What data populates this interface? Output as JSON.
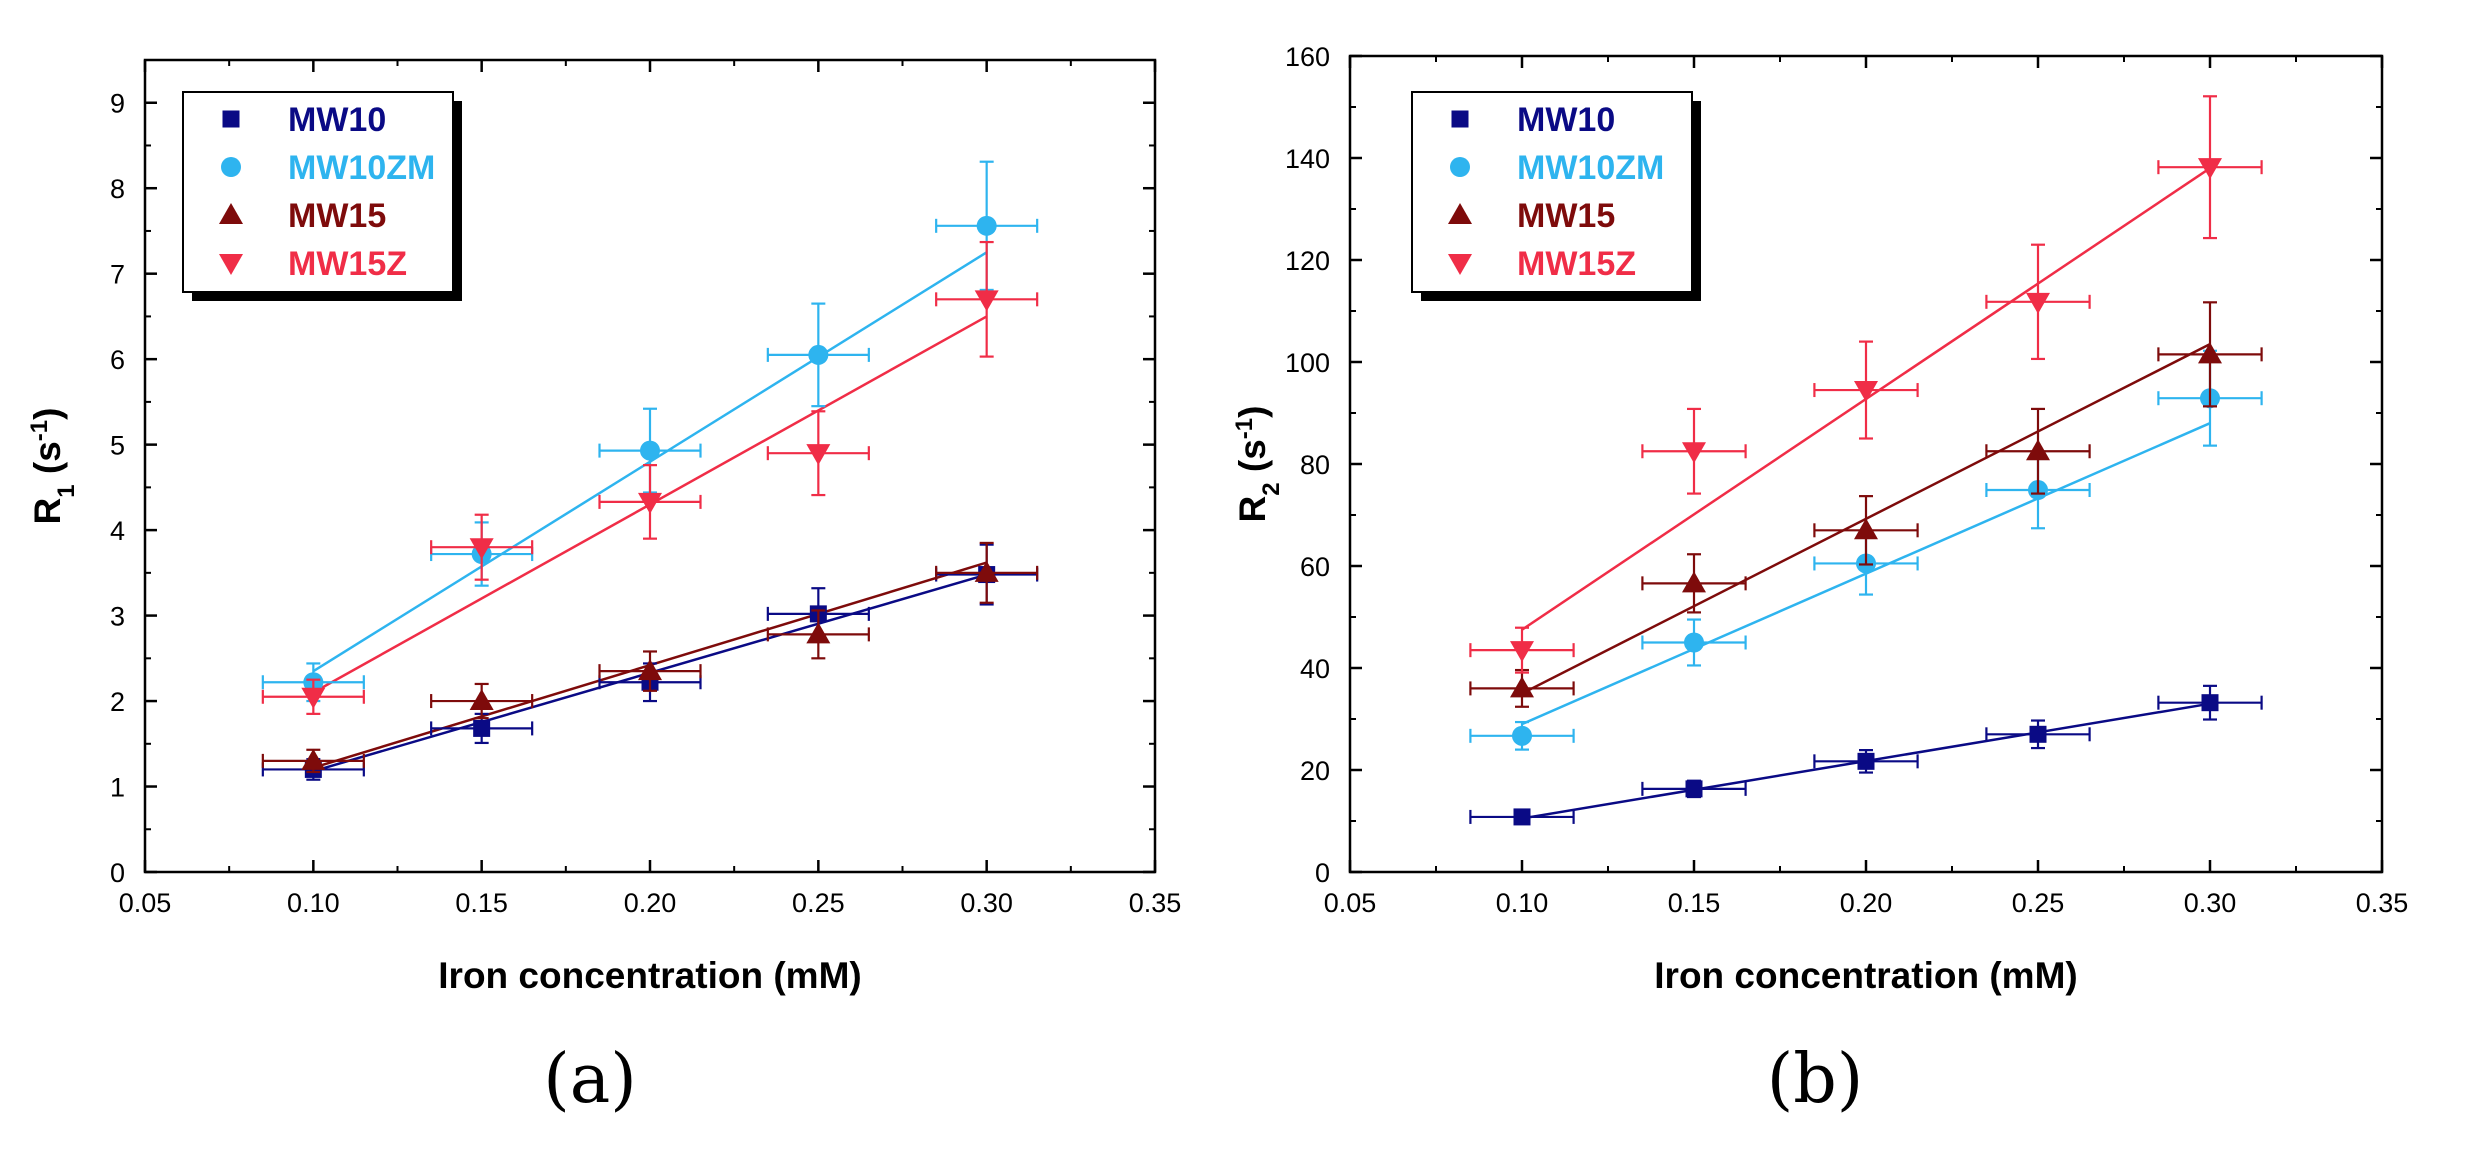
{
  "colors": {
    "MW10": "#0a0a85",
    "MW10ZM": "#2eb4ef",
    "MW15": "#7e0b0b",
    "MW15Z": "#f02d47"
  },
  "chart_data": [
    {
      "type": "scatter",
      "panel_label": "(a)",
      "xlabel": "Iron concentration (mM)",
      "ylabel": {
        "base": "R",
        "sub": "1",
        "unit_open": " (s",
        "sup": "-1",
        "unit_close": ")"
      },
      "xlim": [
        0.05,
        0.35
      ],
      "ylim": [
        0,
        9.5
      ],
      "xticks": [
        0.05,
        0.1,
        0.15,
        0.2,
        0.25,
        0.3,
        0.35
      ],
      "xtick_labels": [
        "0.05",
        "0.10",
        "0.15",
        "0.20",
        "0.25",
        "0.30",
        "0.35"
      ],
      "yticks": [
        0,
        1,
        2,
        3,
        4,
        5,
        6,
        7,
        8,
        9
      ],
      "ytick_labels": [
        "0",
        "1",
        "2",
        "3",
        "4",
        "5",
        "6",
        "7",
        "8",
        "9"
      ],
      "legend_position": "top-left",
      "x_error": 0.015,
      "series": [
        {
          "name": "MW10",
          "color_key": "MW10",
          "marker": "square",
          "x": [
            0.1,
            0.15,
            0.2,
            0.25,
            0.3
          ],
          "y": [
            1.2,
            1.68,
            2.22,
            3.02,
            3.48
          ],
          "yerr": [
            0.12,
            0.17,
            0.22,
            0.3,
            0.35
          ],
          "fit": [
            [
              0.1,
              1.18
            ],
            [
              0.3,
              3.48
            ]
          ]
        },
        {
          "name": "MW10ZM",
          "color_key": "MW10ZM",
          "marker": "circle",
          "x": [
            0.1,
            0.15,
            0.2,
            0.25,
            0.3
          ],
          "y": [
            2.22,
            3.72,
            4.93,
            6.05,
            7.56
          ],
          "yerr": [
            0.22,
            0.37,
            0.49,
            0.6,
            0.75
          ],
          "fit": [
            [
              0.1,
              2.35
            ],
            [
              0.3,
              7.25
            ]
          ]
        },
        {
          "name": "MW15",
          "color_key": "MW15",
          "marker": "triangle-up",
          "x": [
            0.1,
            0.15,
            0.2,
            0.25,
            0.3
          ],
          "y": [
            1.3,
            2.0,
            2.35,
            2.78,
            3.5
          ],
          "yerr": [
            0.13,
            0.2,
            0.23,
            0.28,
            0.35
          ],
          "fit": [
            [
              0.1,
              1.22
            ],
            [
              0.3,
              3.62
            ]
          ]
        },
        {
          "name": "MW15Z",
          "color_key": "MW15Z",
          "marker": "triangle-down",
          "x": [
            0.1,
            0.15,
            0.2,
            0.25,
            0.3
          ],
          "y": [
            2.05,
            3.8,
            4.33,
            4.9,
            6.7
          ],
          "yerr": [
            0.2,
            0.38,
            0.43,
            0.49,
            0.67
          ],
          "fit": [
            [
              0.1,
              2.1
            ],
            [
              0.3,
              6.5
            ]
          ]
        }
      ]
    },
    {
      "type": "scatter",
      "panel_label": "(b)",
      "xlabel": "Iron concentration (mM)",
      "ylabel": {
        "base": "R",
        "sub": "2",
        "unit_open": " (s",
        "sup": "-1",
        "unit_close": ")"
      },
      "xlim": [
        0.05,
        0.35
      ],
      "ylim": [
        0,
        160
      ],
      "xticks": [
        0.05,
        0.1,
        0.15,
        0.2,
        0.25,
        0.3,
        0.35
      ],
      "xtick_labels": [
        "0.05",
        "0.10",
        "0.15",
        "0.20",
        "0.25",
        "0.30",
        "0.35"
      ],
      "yticks": [
        0,
        20,
        40,
        60,
        80,
        100,
        120,
        140,
        160
      ],
      "ytick_labels": [
        "0",
        "20",
        "40",
        "60",
        "80",
        "100",
        "120",
        "140",
        "160"
      ],
      "legend_position": "top-left",
      "x_error": 0.015,
      "series": [
        {
          "name": "MW10",
          "color_key": "MW10",
          "marker": "square",
          "x": [
            0.1,
            0.15,
            0.2,
            0.25,
            0.3
          ],
          "y": [
            10.8,
            16.3,
            21.7,
            27.0,
            33.2
          ],
          "yerr": [
            1.1,
            1.6,
            2.2,
            2.7,
            3.3
          ],
          "fit": [
            [
              0.1,
              10.5
            ],
            [
              0.3,
              33.0
            ]
          ]
        },
        {
          "name": "MW10ZM",
          "color_key": "MW10ZM",
          "marker": "circle",
          "x": [
            0.1,
            0.15,
            0.2,
            0.25,
            0.3
          ],
          "y": [
            26.7,
            45.0,
            60.5,
            74.9,
            92.9
          ],
          "yerr": [
            2.7,
            4.5,
            6.1,
            7.5,
            9.3
          ],
          "fit": [
            [
              0.1,
              29.0
            ],
            [
              0.3,
              88.0
            ]
          ]
        },
        {
          "name": "MW15",
          "color_key": "MW15",
          "marker": "triangle-up",
          "x": [
            0.1,
            0.15,
            0.2,
            0.25,
            0.3
          ],
          "y": [
            36.0,
            56.6,
            67.0,
            82.5,
            101.5
          ],
          "yerr": [
            3.6,
            5.7,
            6.7,
            8.3,
            10.2
          ],
          "fit": [
            [
              0.1,
              35.0
            ],
            [
              0.3,
              103.5
            ]
          ]
        },
        {
          "name": "MW15Z",
          "color_key": "MW15Z",
          "marker": "triangle-down",
          "x": [
            0.1,
            0.15,
            0.2,
            0.25,
            0.3
          ],
          "y": [
            43.5,
            82.5,
            94.5,
            111.8,
            138.2
          ],
          "yerr": [
            4.4,
            8.3,
            9.5,
            11.2,
            13.9
          ],
          "fit": [
            [
              0.1,
              47.5
            ],
            [
              0.3,
              138.0
            ]
          ]
        }
      ]
    }
  ]
}
